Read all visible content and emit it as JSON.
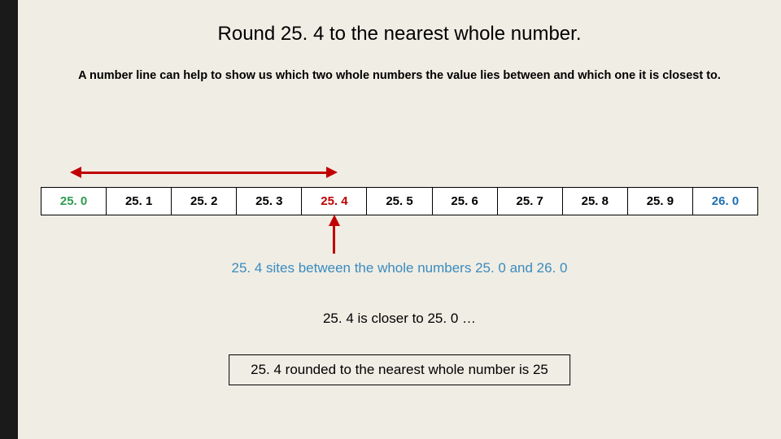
{
  "title": "Round 25. 4 to the nearest whole number.",
  "subtitle": "A number line can help to show us which two whole numbers the value lies between and which one it is closest to.",
  "numberline": {
    "cells": [
      {
        "label": "25. 0",
        "hl": "green"
      },
      {
        "label": "25. 1",
        "hl": ""
      },
      {
        "label": "25. 2",
        "hl": ""
      },
      {
        "label": "25. 3",
        "hl": ""
      },
      {
        "label": "25. 4",
        "hl": "red"
      },
      {
        "label": "25. 5",
        "hl": ""
      },
      {
        "label": "25. 6",
        "hl": ""
      },
      {
        "label": "25. 7",
        "hl": ""
      },
      {
        "label": "25. 8",
        "hl": ""
      },
      {
        "label": "25. 9",
        "hl": ""
      },
      {
        "label": "26. 0",
        "hl": "blue"
      }
    ],
    "arrow_from_cell": 4,
    "arrow_to_cell": 0,
    "pointer_cell": 4,
    "colors": {
      "line": "#c00000",
      "border": "#000000",
      "bg": "#ffffff"
    }
  },
  "caption_between": "25. 4 sites between the whole numbers 25. 0 and 26. 0",
  "caption_closer": "25. 4 is closer to 25. 0 …",
  "answer": "25. 4 rounded to the nearest whole number is 25",
  "page_bg": "#f0ede4",
  "sidebar_color": "#1a1a1a"
}
